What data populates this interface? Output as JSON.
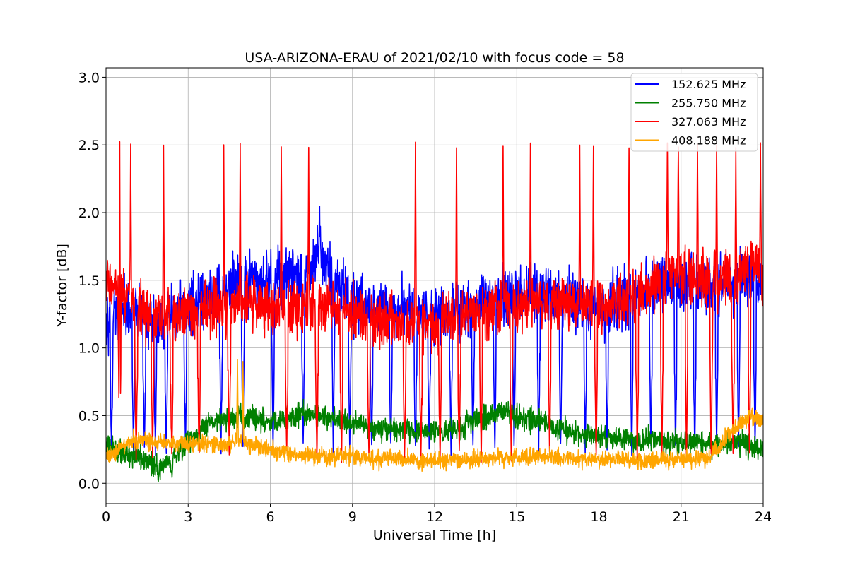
{
  "chart_data": {
    "type": "line",
    "title": "USA-ARIZONA-ERAU of 2021/02/10 with focus code = 58",
    "xlabel": "Universal Time [h]",
    "ylabel": "Y-factor [dB]",
    "xlim": [
      0,
      24
    ],
    "ylim": [
      -0.15,
      3.07
    ],
    "xticks": [
      0,
      3,
      6,
      9,
      12,
      15,
      18,
      21,
      24
    ],
    "xtick_labels": [
      "0",
      "3",
      "6",
      "9",
      "12",
      "15",
      "18",
      "21",
      "24"
    ],
    "yticks": [
      0.0,
      0.5,
      1.0,
      1.5,
      2.0,
      2.5,
      3.0
    ],
    "ytick_labels": [
      "0.0",
      "0.5",
      "1.0",
      "1.5",
      "2.0",
      "2.5",
      "3.0"
    ],
    "grid": true,
    "legend_position": "top-right",
    "series": [
      {
        "name": "152.625 MHz",
        "color": "#0000ff",
        "x": [
          0,
          1,
          2,
          3,
          4,
          5,
          6,
          7,
          7.8,
          9,
          10,
          11,
          12,
          13,
          14,
          15,
          16,
          17,
          18,
          19,
          20,
          21,
          22,
          23,
          24
        ],
        "y": [
          1.25,
          1.25,
          1.2,
          1.3,
          1.4,
          1.5,
          1.5,
          1.55,
          1.7,
          1.35,
          1.3,
          1.3,
          1.25,
          1.3,
          1.35,
          1.4,
          1.4,
          1.35,
          1.3,
          1.35,
          1.45,
          1.45,
          1.45,
          1.5,
          1.5
        ],
        "noise": 0.15,
        "dips": [
          0.2,
          1.0,
          1.4,
          1.8,
          2.2,
          2.9,
          4.2,
          5.0,
          6.1,
          7.2,
          8.3,
          8.9,
          9.7,
          10.4,
          11.3,
          11.8,
          12.6,
          13.4,
          14.2,
          14.9,
          15.8,
          16.6,
          17.5,
          18.3,
          19.2,
          19.9,
          20.8,
          21.5,
          22.3,
          23.1,
          23.7
        ],
        "dip_min": 0.2,
        "peaks": [
          7.8
        ],
        "peak_max": 2.07
      },
      {
        "name": "255.750 MHz",
        "color": "#008000",
        "x": [
          0,
          1,
          2,
          3,
          3.8,
          5,
          6,
          7,
          7.5,
          9,
          10,
          11,
          12,
          13,
          14,
          14.5,
          15,
          16,
          17,
          18,
          19,
          20,
          21,
          22,
          23,
          24
        ],
        "y": [
          0.28,
          0.2,
          0.12,
          0.3,
          0.45,
          0.5,
          0.45,
          0.5,
          0.52,
          0.45,
          0.4,
          0.38,
          0.38,
          0.42,
          0.5,
          0.55,
          0.48,
          0.45,
          0.38,
          0.35,
          0.33,
          0.32,
          0.3,
          0.28,
          0.3,
          0.25
        ],
        "noise": 0.06,
        "dips": [
          1.9,
          2.4
        ],
        "dip_min": 0.0,
        "peaks": [],
        "peak_max": 0
      },
      {
        "name": "327.063 MHz",
        "color": "#ff0000",
        "x": [
          0,
          1,
          2,
          3,
          4,
          5,
          6,
          7,
          8,
          9,
          10,
          11,
          12,
          13,
          14,
          15,
          16,
          17,
          18,
          19,
          20,
          20.5,
          21,
          22,
          23,
          23.8,
          24
        ],
        "y": [
          1.5,
          1.3,
          1.2,
          1.25,
          1.3,
          1.35,
          1.3,
          1.3,
          1.35,
          1.25,
          1.2,
          1.2,
          1.15,
          1.25,
          1.3,
          1.3,
          1.35,
          1.35,
          1.3,
          1.35,
          1.45,
          1.6,
          1.55,
          1.5,
          1.5,
          1.7,
          1.4
        ],
        "noise": 0.14,
        "dips": [
          0.5,
          1.1,
          1.7,
          2.4,
          3.4,
          4.5,
          6.6,
          7.7,
          8.6,
          9.6,
          10.9,
          11.5,
          12.2,
          12.9,
          13.7,
          14.8,
          16.2,
          17.9,
          19.4,
          20.3,
          21.2,
          22.1,
          22.9,
          23.5
        ],
        "dip_min": 0.15,
        "peaks": [
          0.5,
          0.9,
          2.1,
          4.3,
          4.9,
          6.4,
          7.4,
          11.3,
          12.8,
          14.5,
          15.5,
          17.3,
          17.8,
          19.1,
          20.5,
          20.9,
          21.6,
          22.3,
          23.0,
          23.9
        ],
        "peak_max": 2.5
      },
      {
        "name": "408.188 MHz",
        "color": "#ffa500",
        "x": [
          0,
          1,
          2,
          3,
          4,
          5,
          6,
          7,
          8,
          9,
          10,
          11,
          12,
          13,
          14,
          15,
          16,
          17,
          18,
          19,
          20,
          21,
          22,
          22.5,
          23,
          23.5,
          24
        ],
        "y": [
          0.2,
          0.32,
          0.3,
          0.3,
          0.28,
          0.3,
          0.25,
          0.2,
          0.2,
          0.2,
          0.18,
          0.18,
          0.16,
          0.17,
          0.18,
          0.2,
          0.2,
          0.18,
          0.18,
          0.17,
          0.16,
          0.18,
          0.18,
          0.3,
          0.4,
          0.5,
          0.45
        ],
        "noise": 0.045,
        "dips": [],
        "dip_min": 0,
        "peaks": [
          5.0,
          4.8
        ],
        "peak_max": 0.9
      }
    ]
  }
}
